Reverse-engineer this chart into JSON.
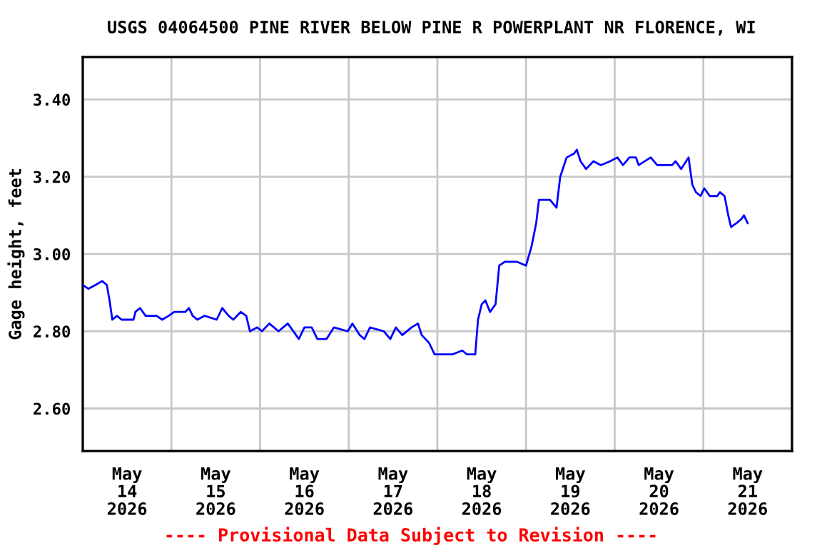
{
  "chart_data": {
    "type": "line",
    "title": "USGS 04064500 PINE RIVER BELOW PINE R POWERPLANT NR FLORENCE, WI",
    "ylabel": "Gage height, feet",
    "annotations": [
      "---- Provisional Data Subject to Revision ----"
    ],
    "grid": true,
    "marker": "none",
    "line_style": "solid",
    "xlim": [
      "2026-05-14T00:00",
      "2026-05-22T00:00"
    ],
    "xticks": [
      {
        "value": "2026-05-15T00:00",
        "label": null
      },
      {
        "value": "2026-05-16T00:00",
        "label": null
      },
      {
        "value": "2026-05-17T00:00",
        "label": null
      },
      {
        "value": "2026-05-18T00:00",
        "label": null
      },
      {
        "value": "2026-05-19T00:00",
        "label": null
      },
      {
        "value": "2026-05-20T00:00",
        "label": null
      },
      {
        "value": "2026-05-21T00:00",
        "label": null
      },
      {
        "value": "2026-05-14T12:00",
        "label": "May\n14\n2026"
      },
      {
        "value": "2026-05-15T12:00",
        "label": "May\n15\n2026"
      },
      {
        "value": "2026-05-16T12:00",
        "label": "May\n16\n2026"
      },
      {
        "value": "2026-05-17T12:00",
        "label": "May\n17\n2026"
      },
      {
        "value": "2026-05-18T12:00",
        "label": "May\n18\n2026"
      },
      {
        "value": "2026-05-19T12:00",
        "label": "May\n19\n2026"
      },
      {
        "value": "2026-05-20T12:00",
        "label": "May\n20\n2026"
      },
      {
        "value": "2026-05-21T12:00",
        "label": "May\n21\n2026"
      }
    ],
    "ylim": [
      2.49,
      3.51
    ],
    "yticks": [
      {
        "value": 2.6,
        "label": "2.60"
      },
      {
        "value": 2.8,
        "label": "2.80"
      },
      {
        "value": 3.0,
        "label": "3.00"
      },
      {
        "value": 3.2,
        "label": "3.20"
      },
      {
        "value": 3.4,
        "label": "3.40"
      }
    ],
    "series": [
      {
        "color": "#0000ff",
        "x": [
          "2026-05-14T00:00",
          "2026-05-14T01:30",
          "2026-05-14T03:30",
          "2026-05-14T05:15",
          "2026-05-14T06:30",
          "2026-05-14T07:15",
          "2026-05-14T08:00",
          "2026-05-14T09:15",
          "2026-05-14T10:30",
          "2026-05-14T13:45",
          "2026-05-14T14:15",
          "2026-05-14T15:30",
          "2026-05-14T17:00",
          "2026-05-14T20:00",
          "2026-05-14T21:30",
          "2026-05-14T23:15",
          "2026-05-15T00:45",
          "2026-05-15T03:45",
          "2026-05-15T04:45",
          "2026-05-15T05:45",
          "2026-05-15T07:00",
          "2026-05-15T09:00",
          "2026-05-15T12:15",
          "2026-05-15T13:45",
          "2026-05-15T15:30",
          "2026-05-15T16:45",
          "2026-05-15T18:45",
          "2026-05-15T20:15",
          "2026-05-15T21:15",
          "2026-05-15T23:15",
          "2026-05-16T00:30",
          "2026-05-16T02:30",
          "2026-05-16T05:00",
          "2026-05-16T07:30",
          "2026-05-16T10:30",
          "2026-05-16T12:00",
          "2026-05-16T14:00",
          "2026-05-16T15:30",
          "2026-05-16T18:00",
          "2026-05-16T20:00",
          "2026-05-16T23:45",
          "2026-05-17T01:00",
          "2026-05-17T03:00",
          "2026-05-17T04:15",
          "2026-05-17T05:45",
          "2026-05-17T09:30",
          "2026-05-17T11:15",
          "2026-05-17T12:45",
          "2026-05-17T14:30",
          "2026-05-17T17:00",
          "2026-05-17T18:45",
          "2026-05-17T19:45",
          "2026-05-17T21:45",
          "2026-05-17T23:15",
          "2026-05-18T00:15",
          "2026-05-18T04:00",
          "2026-05-18T06:45",
          "2026-05-18T08:00",
          "2026-05-18T10:15",
          "2026-05-18T11:00",
          "2026-05-18T12:00",
          "2026-05-18T13:00",
          "2026-05-18T14:15",
          "2026-05-18T15:45",
          "2026-05-18T16:45",
          "2026-05-18T18:15",
          "2026-05-18T21:30",
          "2026-05-19T00:00",
          "2026-05-19T01:30",
          "2026-05-19T02:45",
          "2026-05-19T03:30",
          "2026-05-19T06:30",
          "2026-05-19T08:15",
          "2026-05-19T09:15",
          "2026-05-19T11:00",
          "2026-05-19T13:00",
          "2026-05-19T13:45",
          "2026-05-19T14:45",
          "2026-05-19T16:15",
          "2026-05-19T18:15",
          "2026-05-19T20:15",
          "2026-05-19T22:45",
          "2026-05-20T00:45",
          "2026-05-20T02:15",
          "2026-05-20T04:00",
          "2026-05-20T05:45",
          "2026-05-20T06:30",
          "2026-05-20T09:45",
          "2026-05-20T11:30",
          "2026-05-20T15:30",
          "2026-05-20T16:30",
          "2026-05-20T18:00",
          "2026-05-20T20:00",
          "2026-05-20T21:00",
          "2026-05-20T22:00",
          "2026-05-20T23:15",
          "2026-05-21T00:15",
          "2026-05-21T01:45",
          "2026-05-21T03:45",
          "2026-05-21T04:30",
          "2026-05-21T05:45",
          "2026-05-21T06:45",
          "2026-05-21T07:30",
          "2026-05-21T09:00",
          "2026-05-21T10:15",
          "2026-05-21T11:00",
          "2026-05-21T12:00"
        ],
        "values": [
          2.92,
          2.91,
          2.92,
          2.93,
          2.92,
          2.88,
          2.83,
          2.84,
          2.83,
          2.83,
          2.85,
          2.86,
          2.84,
          2.84,
          2.83,
          2.84,
          2.85,
          2.85,
          2.86,
          2.84,
          2.83,
          2.84,
          2.83,
          2.86,
          2.84,
          2.83,
          2.85,
          2.84,
          2.8,
          2.81,
          2.8,
          2.82,
          2.8,
          2.82,
          2.78,
          2.81,
          2.81,
          2.78,
          2.78,
          2.81,
          2.8,
          2.82,
          2.79,
          2.78,
          2.81,
          2.8,
          2.78,
          2.81,
          2.79,
          2.81,
          2.82,
          2.79,
          2.77,
          2.74,
          2.74,
          2.74,
          2.75,
          2.74,
          2.74,
          2.83,
          2.87,
          2.88,
          2.85,
          2.87,
          2.97,
          2.98,
          2.98,
          2.97,
          3.02,
          3.08,
          3.14,
          3.14,
          3.12,
          3.2,
          3.25,
          3.26,
          3.27,
          3.24,
          3.22,
          3.24,
          3.23,
          3.24,
          3.25,
          3.23,
          3.25,
          3.25,
          3.23,
          3.25,
          3.23,
          3.23,
          3.24,
          3.22,
          3.25,
          3.18,
          3.16,
          3.15,
          3.17,
          3.15,
          3.15,
          3.16,
          3.15,
          3.1,
          3.07,
          3.08,
          3.09,
          3.1,
          3.08
        ]
      }
    ]
  }
}
